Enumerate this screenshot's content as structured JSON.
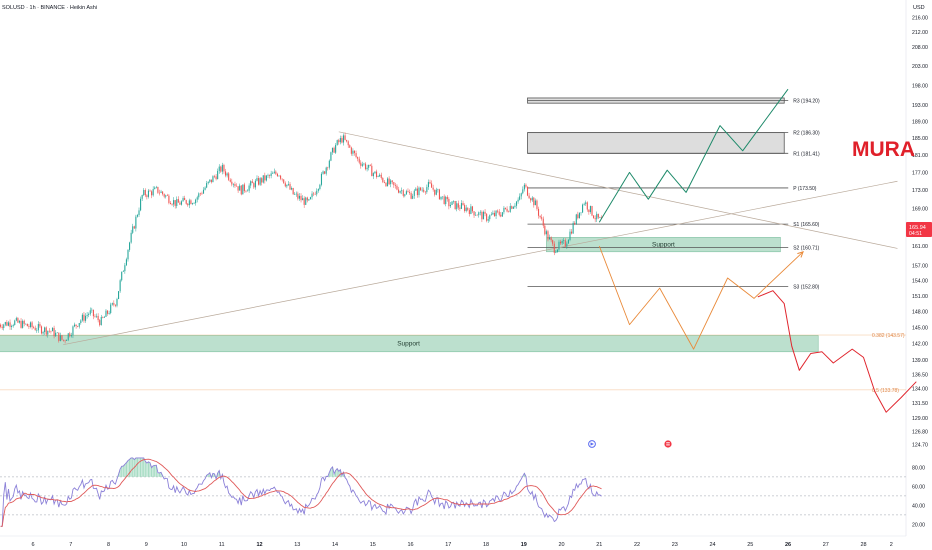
{
  "header": {
    "symbol_line": "SOLUSD · 1h · BINANCE · Heikin Ashi",
    "currency": "USD"
  },
  "watermark": "MURA",
  "colors": {
    "up": "#26a69a",
    "down": "#ef5350",
    "pivot_line": "#555555",
    "support_fill": "#9fd3b9",
    "resistance_fill": "#d9d9d9",
    "bull_path": "#1e8a6a",
    "bear_path": "#e98a3a",
    "fib_line": "#f0a868",
    "rsi_line": "#8b80d8",
    "rsi_ma": "#e05a5a",
    "price_tag": "#f23645",
    "watermark": "#e0202a"
  },
  "chart_data": {
    "type": "candlestick",
    "title": "SOLUSD · 1h · BINANCE · Heikin Ashi",
    "price_axis": {
      "ticks": [
        216.0,
        212.0,
        208.0,
        203.0,
        198.0,
        193.0,
        189.0,
        185.0,
        181.0,
        177.0,
        173.0,
        169.0,
        165.0,
        161.0,
        157.0,
        154.0,
        151.0,
        148.0,
        145.0,
        142.0,
        139.0,
        136.5,
        134.0,
        131.5,
        129.0,
        126.8,
        124.7
      ],
      "ylim": [
        123.5,
        219.0
      ]
    },
    "date_axis": {
      "labels": [
        "6",
        "7",
        "8",
        "9",
        "10",
        "11",
        "12",
        "13",
        "14",
        "15",
        "16",
        "17",
        "18",
        "19",
        "20",
        "21",
        "22",
        "23",
        "24",
        "25",
        "26",
        "27",
        "28",
        "2"
      ],
      "bold": [
        "12",
        "19",
        "26"
      ]
    },
    "last_price": "165.94",
    "last_countdown": "04:51",
    "pivot_levels": [
      {
        "label": "R3 (194.20)",
        "value": 194.2
      },
      {
        "label": "R2 (186.30)",
        "value": 186.3
      },
      {
        "label": "R1 (181.41)",
        "value": 181.41
      },
      {
        "label": "P (173.50)",
        "value": 173.5
      },
      {
        "label": "S1 (165.60)",
        "value": 165.6
      },
      {
        "label": "S2 (160.71)",
        "value": 160.71
      },
      {
        "label": "S3 (152.80)",
        "value": 152.8
      }
    ],
    "zones": [
      {
        "label": "Support",
        "from_day": 5.1,
        "to_day": 26.8,
        "low": 140.5,
        "high": 143.5
      },
      {
        "label": "Support",
        "from_day": 19.6,
        "to_day": 25.8,
        "low": 159.8,
        "high": 162.8
      },
      {
        "label": "",
        "from_day": 19.1,
        "to_day": 25.9,
        "low": 181.4,
        "high": 186.3
      },
      {
        "label": "",
        "from_day": 19.1,
        "to_day": 25.9,
        "low": 193.5,
        "high": 194.8
      }
    ],
    "fib_levels": [
      {
        "label": "0.382 (143.57)",
        "value": 143.57
      },
      {
        "label": "0.5 (133.78)",
        "value": 133.78
      }
    ],
    "trendlines": [
      {
        "from": [
          6.8,
          141.8
        ],
        "to": [
          28.9,
          175.0
        ]
      },
      {
        "from": [
          14.1,
          186.5
        ],
        "to": [
          28.9,
          160.5
        ]
      }
    ],
    "bullish_projection": [
      [
        21.0,
        166.0
      ],
      [
        21.8,
        177.0
      ],
      [
        22.3,
        171.0
      ],
      [
        22.8,
        177.5
      ],
      [
        23.3,
        172.5
      ],
      [
        24.2,
        188.0
      ],
      [
        24.8,
        182.0
      ],
      [
        26.0,
        197.0
      ]
    ],
    "bearish_projection": [
      [
        21.0,
        161.0
      ],
      [
        21.8,
        145.5
      ],
      [
        22.6,
        152.5
      ],
      [
        23.5,
        141.0
      ],
      [
        24.4,
        154.5
      ],
      [
        25.1,
        150.5
      ],
      [
        26.4,
        159.8
      ]
    ],
    "projected_drop": [
      [
        25.2,
        150.8
      ],
      [
        25.6,
        152.0
      ],
      [
        25.9,
        149.5
      ],
      [
        26.1,
        141.5
      ],
      [
        26.3,
        137.2
      ],
      [
        26.6,
        140.2
      ],
      [
        26.9,
        140.5
      ],
      [
        27.2,
        138.5
      ],
      [
        27.7,
        141.0
      ],
      [
        28.0,
        139.5
      ],
      [
        28.3,
        133.5
      ],
      [
        28.6,
        130.0
      ],
      [
        29.0,
        132.5
      ],
      [
        29.4,
        135.2
      ]
    ],
    "price_path": [
      [
        5.1,
        145.5
      ],
      [
        5.5,
        146.0
      ],
      [
        6.0,
        145.0
      ],
      [
        6.5,
        144.3
      ],
      [
        6.8,
        142.5
      ],
      [
        7.2,
        146.0
      ],
      [
        7.5,
        147.8
      ],
      [
        7.8,
        146.0
      ],
      [
        8.2,
        150.0
      ],
      [
        8.5,
        160.0
      ],
      [
        8.9,
        172.0
      ],
      [
        9.3,
        173.0
      ],
      [
        9.8,
        170.0
      ],
      [
        10.3,
        171.0
      ],
      [
        10.7,
        175.0
      ],
      [
        11.0,
        178.0
      ],
      [
        11.5,
        173.0
      ],
      [
        12.0,
        175.0
      ],
      [
        12.5,
        177.0
      ],
      [
        12.9,
        172.0
      ],
      [
        13.3,
        170.0
      ],
      [
        13.6,
        175.0
      ],
      [
        14.0,
        183.0
      ],
      [
        14.2,
        185.0
      ],
      [
        14.6,
        180.0
      ],
      [
        15.0,
        177.0
      ],
      [
        15.5,
        174.0
      ],
      [
        16.0,
        172.0
      ],
      [
        16.5,
        174.0
      ],
      [
        17.0,
        170.0
      ],
      [
        17.5,
        169.0
      ],
      [
        18.0,
        167.0
      ],
      [
        18.4,
        168.0
      ],
      [
        18.9,
        171.0
      ],
      [
        19.0,
        174.0
      ],
      [
        19.3,
        170.0
      ],
      [
        19.6,
        163.5
      ],
      [
        19.8,
        160.5
      ],
      [
        20.1,
        161.5
      ],
      [
        20.4,
        167.0
      ],
      [
        20.6,
        170.5
      ],
      [
        20.9,
        167.0
      ],
      [
        21.1,
        166.0
      ]
    ],
    "rsi": {
      "ylim": [
        12,
        92
      ],
      "ticks": [
        80.0,
        60.0,
        40.0,
        20.0
      ],
      "bands": [
        70,
        50,
        30
      ]
    },
    "markers": [
      "replay",
      "flag"
    ]
  }
}
